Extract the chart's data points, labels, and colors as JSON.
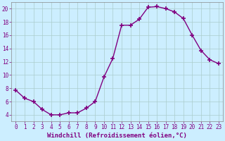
{
  "x": [
    0,
    1,
    2,
    3,
    4,
    5,
    6,
    7,
    8,
    9,
    10,
    11,
    12,
    13,
    14,
    15,
    16,
    17,
    18,
    19,
    20,
    21,
    22,
    23
  ],
  "y": [
    7.7,
    6.5,
    6.0,
    4.8,
    4.0,
    4.0,
    4.3,
    4.3,
    5.0,
    6.0,
    9.7,
    12.5,
    17.5,
    17.5,
    18.4,
    20.2,
    20.3,
    20.0,
    19.5,
    18.5,
    16.0,
    13.7,
    12.3,
    11.7
  ],
  "line_color": "#800080",
  "marker": "+",
  "markersize": 4,
  "markeredgewidth": 1.2,
  "linewidth": 1.0,
  "background_color": "#cceeff",
  "grid_color": "#aacccc",
  "xlabel": "Windchill (Refroidissement éolien,°C)",
  "ylabel": "",
  "xlim": [
    -0.5,
    23.5
  ],
  "ylim": [
    3.0,
    21.0
  ],
  "yticks": [
    4,
    6,
    8,
    10,
    12,
    14,
    16,
    18,
    20
  ],
  "xticks": [
    0,
    1,
    2,
    3,
    4,
    5,
    6,
    7,
    8,
    9,
    10,
    11,
    12,
    13,
    14,
    15,
    16,
    17,
    18,
    19,
    20,
    21,
    22,
    23
  ],
  "tick_color": "#800080",
  "label_color": "#800080",
  "tick_fontsize": 5.5,
  "xlabel_fontsize": 6.5,
  "spine_color": "#888888"
}
